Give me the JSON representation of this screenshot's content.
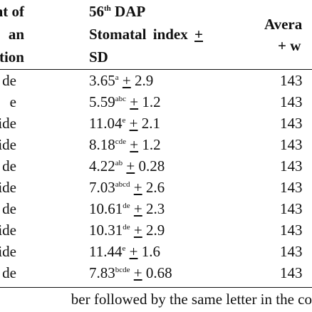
{
  "table": {
    "header": {
      "col1_lines": [
        "nt of",
        "an",
        "ation"
      ],
      "col2_title_main": "56",
      "col2_title_sup": "th",
      "col2_title_rest": " DAP",
      "col2_line2_text": "Stomatal index",
      "col2_line2_pm": "+",
      "col2_line3": "SD",
      "col3_line1": "Avera",
      "col3_line2": "+ w"
    },
    "rows": [
      {
        "label": "de",
        "value": "3.65",
        "letters": "a",
        "pm": "+",
        "sd": "2.9",
        "col3": "143"
      },
      {
        "label": "e",
        "value": "5.59",
        "letters": "abc",
        "pm": "+",
        "sd": "1.2",
        "col3": "143"
      },
      {
        "label": "side",
        "value": "11.04",
        "letters": "e",
        "pm": "+",
        "sd": "2.1",
        "col3": "143"
      },
      {
        "label": " side",
        "value": "8.18",
        "letters": "cde",
        "pm": "+",
        "sd": "1.2",
        "col3": "143"
      },
      {
        "label": "de",
        "value": "4.22",
        "letters": "ab",
        "pm": "+",
        "sd": "0.28",
        "col3": "143"
      },
      {
        "label": "ide",
        "value": "7.03",
        "letters": "abcd",
        "pm": "+",
        "sd": "2.6",
        "col3": "143"
      },
      {
        "label": "de",
        "value": "10.61",
        "letters": "de",
        "pm": "+",
        "sd": "2.3",
        "col3": "143"
      },
      {
        "label": " side",
        "value": "10.31",
        "letters": "de",
        "pm": "+",
        "sd": "2.9",
        "col3": "143"
      },
      {
        "label": "n side",
        "value": "11.44",
        "letters": "e",
        "pm": "+",
        "sd": "1.6",
        "col3": "143"
      },
      {
        "label": "de",
        "value": "7.83",
        "letters": "bcde",
        "pm": "+",
        "sd": "0.68",
        "col3": "143"
      }
    ]
  },
  "footnote": "ber followed by the same letter in the co"
}
